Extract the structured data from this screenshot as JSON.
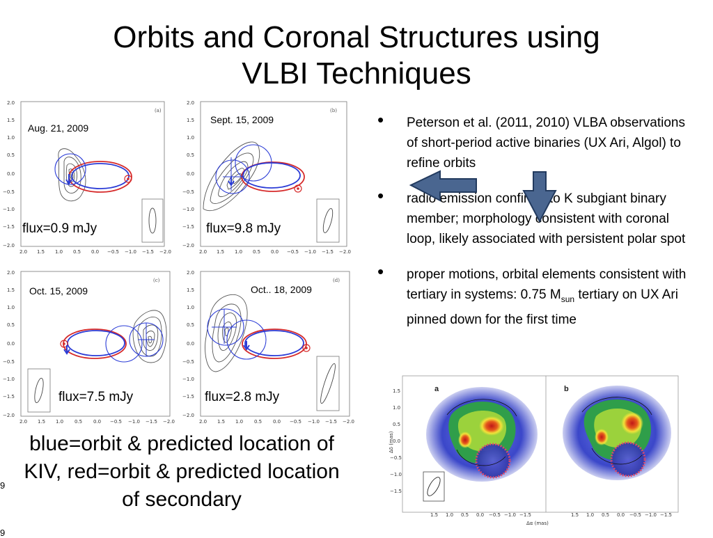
{
  "title": {
    "line1": "Orbits and Coronal Structures using",
    "line2": "VLBI Techniques"
  },
  "panels": [
    {
      "letter": "(a)",
      "date": "Aug. 21, 2009",
      "flux": "flux=0.9 mJy"
    },
    {
      "letter": "(b)",
      "date": "Sept. 15, 2009",
      "flux": "flux=9.8 mJy"
    },
    {
      "letter": "(c)",
      "date": "Oct. 15, 2009",
      "flux": "flux=7.5 mJy"
    },
    {
      "letter": "(d)",
      "date": "Oct.. 18, 2009",
      "flux": "flux=2.8 mJy"
    }
  ],
  "axes": {
    "y_ticks": [
      "2.0",
      "1.5",
      "1.0",
      "0.5",
      "0.0",
      "−0.5",
      "−1.0",
      "−1.5",
      "−2.0"
    ],
    "x_ticks": [
      "2.0",
      "1.5",
      "1.0",
      "0.5",
      "0.0",
      "−0.5",
      "−1.0",
      "−1.5",
      "−2.0"
    ]
  },
  "bullets": [
    {
      "text": "Peterson et al. (2011, 2010) VLBA observations of short-period active binaries (UX Ari, Algol) to refine orbits"
    },
    {
      "text": "radio emission confined to K subgiant binary member; morphology consistent with coronal loop, likely associated with persistent polar spot"
    },
    {
      "text_before": "proper motions, orbital elements consistent with tertiary in systems: 0.75 M",
      "sub": "sun",
      "text_after": " tertiary on UX Ari pinned down for the first time"
    }
  ],
  "caption": "blue=orbit & predicted location of KIV, red=orbit & predicted location of secondary",
  "image_panels": {
    "a_label": "a",
    "b_label": "b",
    "ylabel": "Δδ (mas)",
    "xlabel": "Δα (mas)",
    "y_ticks": [
      "1.5",
      "1.0",
      "0.5",
      "0.0",
      "−0.5",
      "−1.0",
      "−1.5"
    ],
    "x_ticks": [
      "1.5",
      "1.0",
      "0.5",
      "0.0",
      "−0.5",
      "−1.0",
      "−1.5"
    ]
  },
  "page_number": "9",
  "page_number_bottom": "9",
  "colors": {
    "orbit_blue": "#2a3bd6",
    "orbit_red": "#d62a2a",
    "arrow_fill": "#4a6690",
    "arrow_stroke": "#223a5e"
  }
}
